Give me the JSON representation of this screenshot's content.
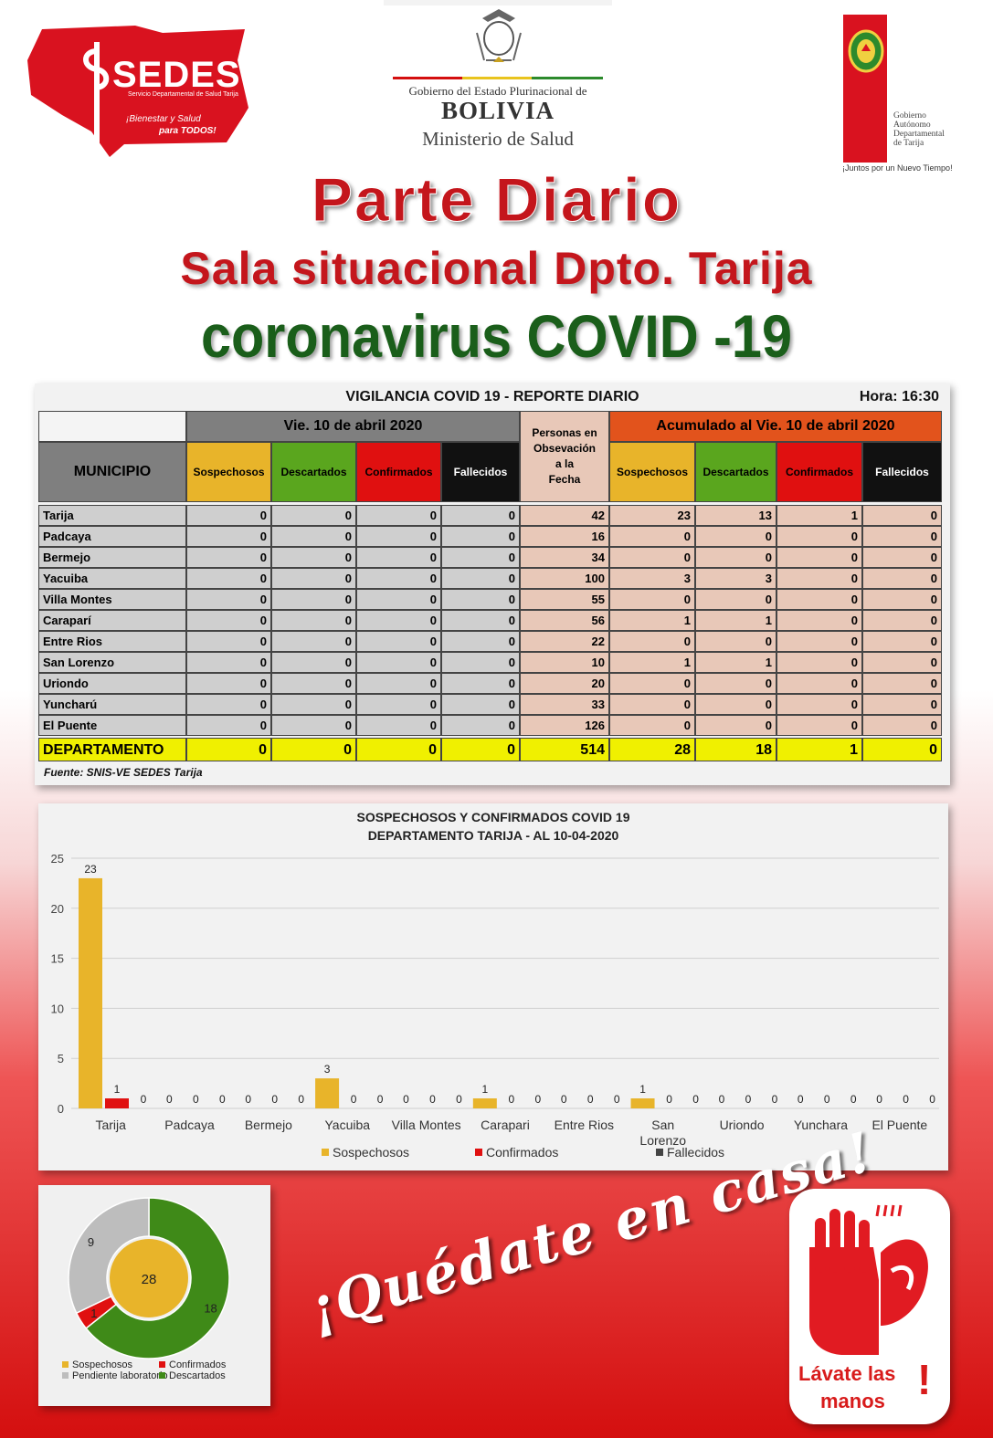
{
  "header": {
    "sedes": {
      "name": "SEDES",
      "subtitle": "Servicio Departamental de Salud Tarija",
      "slogan_line1": "¡Bienestar y Salud",
      "slogan_line2": "para TODOS!"
    },
    "bolivia": {
      "gobierno": "Gobierno del Estado Plurinacional de",
      "pais": "BOLIVIA",
      "ministerio": "Ministerio de Salud"
    },
    "tarija": {
      "gob_lines": [
        "Gobierno",
        "Autónomo",
        "Departamental",
        "de Tarija"
      ],
      "slogan": "¡Juntos por un Nuevo Tiempo!"
    },
    "title": "Parte Diario",
    "subtitle": "Sala situacional Dpto. Tarija",
    "topic": "coronavirus COVID -19"
  },
  "colors": {
    "sospechosos": "#e8b42a",
    "descartados": "#5aa61e",
    "confirmados": "#e01010",
    "fallecidos": "#111111",
    "header_gray": "#7f7f7f",
    "header_orange": "#e2531c",
    "left_body": "#cfcfcf",
    "right_body": "#e8c8b8",
    "total_row": "#f0f000"
  },
  "table": {
    "title": "VIGILANCIA COVID 19 - REPORTE DIARIO",
    "hora": "Hora: 16:30",
    "date_header": "Vie. 10 de abril 2020",
    "obs_header_top": "Personas en",
    "obs_header_lines": [
      "Obsevación",
      "a la",
      "Fecha"
    ],
    "acum_header": "Acumulado al Vie. 10 de abril 2020",
    "municipio_header": "MUNICIPIO",
    "columns": [
      "Sospechosos",
      "Descartados",
      "Confirmados",
      "Fallecidos"
    ],
    "rows": [
      {
        "municipio": "Tarija",
        "day": [
          "0",
          "0",
          "0",
          "0"
        ],
        "obs": "42",
        "acum": [
          "23",
          "13",
          "1",
          "0"
        ]
      },
      {
        "municipio": "Padcaya",
        "day": [
          "0",
          "0",
          "0",
          "0"
        ],
        "obs": "16",
        "acum": [
          "0",
          "0",
          "0",
          "0"
        ]
      },
      {
        "municipio": "Bermejo",
        "day": [
          "0",
          "0",
          "0",
          "0"
        ],
        "obs": "34",
        "acum": [
          "0",
          "0",
          "0",
          "0"
        ]
      },
      {
        "municipio": "Yacuiba",
        "day": [
          "0",
          "0",
          "0",
          "0"
        ],
        "obs": "100",
        "acum": [
          "3",
          "3",
          "0",
          "0"
        ]
      },
      {
        "municipio": "Villa Montes",
        "day": [
          "0",
          "0",
          "0",
          "0"
        ],
        "obs": "55",
        "acum": [
          "0",
          "0",
          "0",
          "0"
        ]
      },
      {
        "municipio": "Caraparí",
        "day": [
          "0",
          "0",
          "0",
          "0"
        ],
        "obs": "56",
        "acum": [
          "1",
          "1",
          "0",
          "0"
        ]
      },
      {
        "municipio": "Entre Rios",
        "day": [
          "0",
          "0",
          "0",
          "0"
        ],
        "obs": "22",
        "acum": [
          "0",
          "0",
          "0",
          "0"
        ]
      },
      {
        "municipio": "San Lorenzo",
        "day": [
          "0",
          "0",
          "0",
          "0"
        ],
        "obs": "10",
        "acum": [
          "1",
          "1",
          "0",
          "0"
        ]
      },
      {
        "municipio": "Uriondo",
        "day": [
          "0",
          "0",
          "0",
          "0"
        ],
        "obs": "20",
        "acum": [
          "0",
          "0",
          "0",
          "0"
        ]
      },
      {
        "municipio": "Yuncharú",
        "day": [
          "0",
          "0",
          "0",
          "0"
        ],
        "obs": "33",
        "acum": [
          "0",
          "0",
          "0",
          "0"
        ]
      },
      {
        "municipio": "El Puente",
        "day": [
          "0",
          "0",
          "0",
          "0"
        ],
        "obs": "126",
        "acum": [
          "0",
          "0",
          "0",
          "0"
        ]
      }
    ],
    "total": {
      "municipio": "DEPARTAMENTO",
      "day": [
        "0",
        "0",
        "0",
        "0"
      ],
      "obs": "514",
      "acum": [
        "28",
        "18",
        "1",
        "0"
      ]
    },
    "source": "Fuente: SNIS-VE SEDES Tarija"
  },
  "chart_data": [
    {
      "type": "bar",
      "title": "SOSPECHOSOS Y CONFIRMADOS COVID 19",
      "subtitle": "DEPARTAMENTO TARIJA - AL 10-04-2020",
      "categories": [
        "Tarija",
        "Padcaya",
        "Bermejo",
        "Yacuiba",
        "Villa Montes",
        "Carapari",
        "Entre Rios",
        "San Lorenzo",
        "Uriondo",
        "Yunchara",
        "El Puente"
      ],
      "series": [
        {
          "name": "Sospechosos",
          "values": [
            23,
            0,
            0,
            3,
            0,
            1,
            0,
            1,
            0,
            0,
            0
          ]
        },
        {
          "name": "Confirmados",
          "values": [
            1,
            0,
            0,
            0,
            0,
            0,
            0,
            0,
            0,
            0,
            0
          ]
        },
        {
          "name": "Fallecidos",
          "values": [
            0,
            0,
            0,
            0,
            0,
            0,
            0,
            0,
            0,
            0,
            0
          ]
        }
      ],
      "ylim": [
        0,
        25
      ],
      "yticks": [
        0,
        5,
        10,
        15,
        20,
        25
      ],
      "grid": true,
      "legend": "bottom"
    },
    {
      "type": "pie",
      "donut": true,
      "inner_value": 28,
      "inner_label": "Sospechosos",
      "slices": [
        {
          "name": "Descartados",
          "value": 18
        },
        {
          "name": "Confirmados",
          "value": 1
        },
        {
          "name": "Pendiente laboratorio",
          "value": 9
        }
      ],
      "legend": [
        {
          "name": "Sospechosos",
          "color": "#e8b42a"
        },
        {
          "name": "Pendiente laboratorio",
          "color": "#bdbdbd"
        },
        {
          "name": "Confirmados",
          "color": "#e01010"
        },
        {
          "name": "Descartados",
          "color": "#3f8a18"
        }
      ],
      "legend_position": "bottom"
    }
  ],
  "messages": {
    "quedate": "¡Quédate en casa!",
    "lavate_line1": "Lávate las",
    "lavate_line2": "manos",
    "lavate_excl": "!"
  }
}
